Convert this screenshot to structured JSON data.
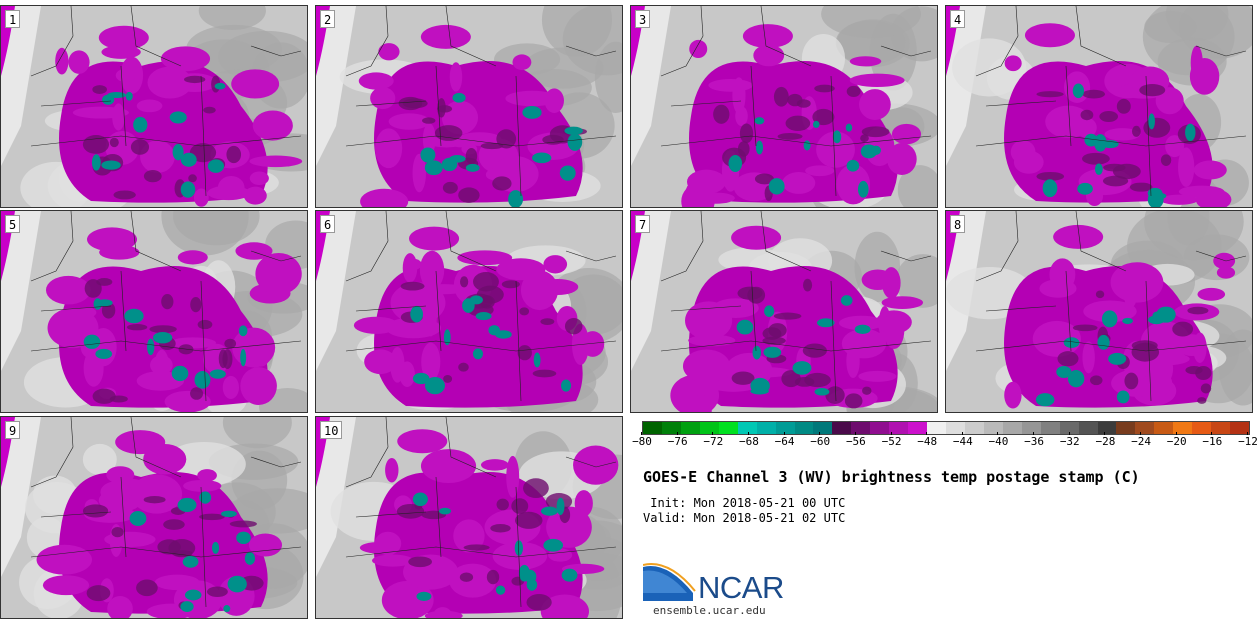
{
  "panels": [
    {
      "label": "1"
    },
    {
      "label": "2"
    },
    {
      "label": "3"
    },
    {
      "label": "4"
    },
    {
      "label": "5"
    },
    {
      "label": "6"
    },
    {
      "label": "7"
    },
    {
      "label": "8"
    },
    {
      "label": "9"
    },
    {
      "label": "10"
    }
  ],
  "colorbar": {
    "colors": [
      "#006400",
      "#00800a",
      "#00a010",
      "#00c418",
      "#00e020",
      "#00c8b4",
      "#00b0a8",
      "#009c96",
      "#008a84",
      "#00787a",
      "#4a0a4a",
      "#6e0c6e",
      "#900e90",
      "#b010b0",
      "#cc10cc",
      "#f0f0f0",
      "#dedede",
      "#cccccc",
      "#bababa",
      "#a8a8a8",
      "#969696",
      "#808080",
      "#6a6a6a",
      "#545454",
      "#3c3c3c",
      "#783c1e",
      "#a04a1e",
      "#c85a14",
      "#f07814",
      "#e65a14",
      "#c84614",
      "#b43214"
    ],
    "ticks": [
      "−80",
      "−76",
      "−72",
      "−68",
      "−64",
      "−60",
      "−56",
      "−52",
      "−48",
      "−44",
      "−40",
      "−36",
      "−32",
      "−28",
      "−24",
      "−20",
      "−16",
      "−12"
    ]
  },
  "title": "GOES-E Channel 3 (WV) brightness temp postage stamp (C)",
  "init": " Init: Mon 2018-05-21 00 UTC",
  "valid": "Valid: Mon 2018-05-21 02 UTC",
  "logo": {
    "text": "NCAR",
    "url": "ensemble.ucar.edu"
  }
}
